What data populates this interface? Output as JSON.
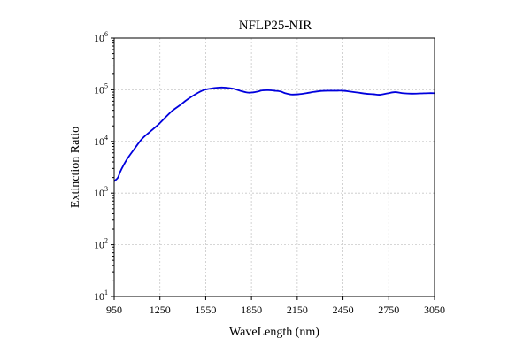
{
  "chart_data": {
    "type": "line",
    "title": "NFLP25-NIR",
    "xlabel": "WaveLength (nm)",
    "ylabel": "Extinction Ratio",
    "xlim": [
      950,
      3050
    ],
    "ylim": [
      10,
      1000000
    ],
    "yscale": "log",
    "grid": true,
    "x_ticks": [
      950,
      1250,
      1550,
      1850,
      2150,
      2450,
      2750,
      3050
    ],
    "x_tick_labels": [
      "950",
      "1250",
      "1550",
      "1850",
      "2150",
      "2450",
      "2750",
      "3050"
    ],
    "y_ticks": [
      10,
      100,
      1000,
      10000,
      100000,
      1000000
    ],
    "y_tick_labels": [
      {
        "base": "10",
        "exp": "1"
      },
      {
        "base": "10",
        "exp": "2"
      },
      {
        "base": "10",
        "exp": "3"
      },
      {
        "base": "10",
        "exp": "4"
      },
      {
        "base": "10",
        "exp": "5"
      },
      {
        "base": "10",
        "exp": "6"
      }
    ],
    "series": [
      {
        "color": "#0000dd",
        "x": [
          950,
          960,
          975,
          990,
          1010,
          1040,
          1080,
          1130,
          1180,
          1230,
          1280,
          1330,
          1380,
          1430,
          1480,
          1530,
          1580,
          1630,
          1680,
          1730,
          1780,
          1830,
          1880,
          1920,
          1960,
          2000,
          2040,
          2070,
          2110,
          2160,
          2210,
          2260,
          2310,
          2360,
          2410,
          2450,
          2500,
          2550,
          2600,
          2650,
          2690,
          2740,
          2790,
          2840,
          2900,
          2960,
          3010,
          3050
        ],
        "y": [
          1700,
          1800,
          2000,
          2600,
          3400,
          4800,
          7000,
          11000,
          15000,
          20000,
          28000,
          39000,
          50000,
          65000,
          81000,
          97000,
          105000,
          110000,
          110000,
          105000,
          95000,
          88000,
          91000,
          97000,
          98000,
          96000,
          93000,
          86000,
          81000,
          82000,
          86000,
          91000,
          95000,
          96000,
          96000,
          96000,
          92000,
          88000,
          84000,
          82000,
          80000,
          85000,
          90000,
          86000,
          84000,
          85000,
          86000,
          86000
        ]
      }
    ]
  }
}
